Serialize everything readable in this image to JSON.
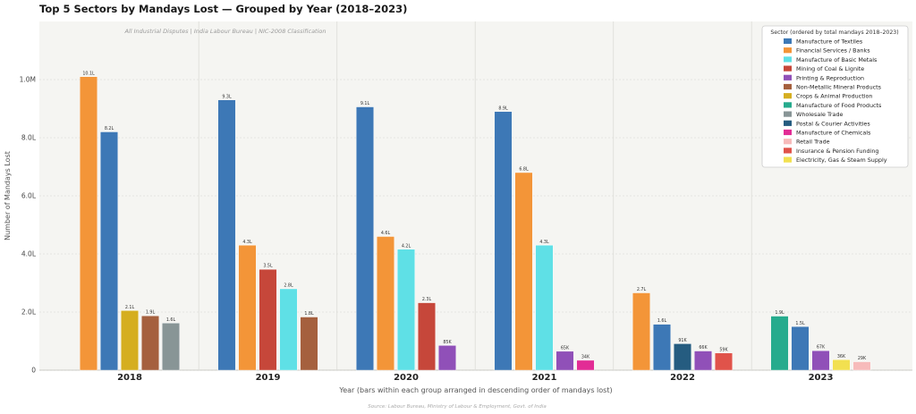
{
  "chart_data": {
    "type": "bar",
    "title": "Top 5 Sectors by Mandays Lost — Grouped by Year (2018–2023)",
    "subtitle": "All Industrial Disputes  |  India Labour Bureau  |  NIC-2008 Classification",
    "ylabel": "Number of Mandays Lost",
    "xlabel": "Year  (bars within each group arranged in descending order of mandays lost)",
    "source": "Source: Labour Bureau, Ministry of Labour & Employment, Govt. of India",
    "ylim": [
      0,
      1200000
    ],
    "yticks": [
      0,
      200000,
      400000,
      600000,
      800000,
      1000000
    ],
    "ytick_labels": [
      "0",
      "2.0L",
      "4.0L",
      "6.0L",
      "8.0L",
      "1.0M"
    ],
    "grid": true,
    "legend_position": "top-right",
    "legend_title": "Sector  (ordered by total mandays 2018–2023)",
    "sectors": [
      {
        "name": "Manufacture of Textiles",
        "color": "#3d78b6"
      },
      {
        "name": "Financial Services / Banks",
        "color": "#f39538"
      },
      {
        "name": "Manufacture of Basic Metals",
        "color": "#5fe0e6"
      },
      {
        "name": "Mining of Coal & Lignite",
        "color": "#c6473a"
      },
      {
        "name": "Printing & Reproduction",
        "color": "#9050b8"
      },
      {
        "name": "Non-Metallic Mineral Products",
        "color": "#a5603e"
      },
      {
        "name": "Crops & Animal Production",
        "color": "#d5ae20"
      },
      {
        "name": "Manufacture of Food Products",
        "color": "#26ab8d"
      },
      {
        "name": "Wholesale Trade",
        "color": "#889596"
      },
      {
        "name": "Postal & Courier Activities",
        "color": "#255c80"
      },
      {
        "name": "Manufacture of Chemicals",
        "color": "#e22c95"
      },
      {
        "name": "Retail Trade",
        "color": "#f7bbbb"
      },
      {
        "name": "Insurance & Pension Funding",
        "color": "#e0534a"
      },
      {
        "name": "Electricity, Gas & Steam Supply",
        "color": "#f2e050"
      }
    ],
    "groups": [
      {
        "year": "2018",
        "bars": [
          {
            "sector": "Financial Services / Banks",
            "value": 1010000,
            "label": "10.1L"
          },
          {
            "sector": "Manufacture of Textiles",
            "value": 820000,
            "label": "8.2L"
          },
          {
            "sector": "Crops & Animal Production",
            "value": 205000,
            "label": "2.1L"
          },
          {
            "sector": "Non-Metallic Mineral Products",
            "value": 187000,
            "label": "1.9L"
          },
          {
            "sector": "Wholesale Trade",
            "value": 162000,
            "label": "1.6L"
          }
        ]
      },
      {
        "year": "2019",
        "bars": [
          {
            "sector": "Manufacture of Textiles",
            "value": 930000,
            "label": "9.3L"
          },
          {
            "sector": "Financial Services / Banks",
            "value": 430000,
            "label": "4.3L"
          },
          {
            "sector": "Mining of Coal & Lignite",
            "value": 347000,
            "label": "3.5L"
          },
          {
            "sector": "Manufacture of Basic Metals",
            "value": 280000,
            "label": "2.8L"
          },
          {
            "sector": "Non-Metallic Mineral Products",
            "value": 183000,
            "label": "1.8L"
          }
        ]
      },
      {
        "year": "2020",
        "bars": [
          {
            "sector": "Manufacture of Textiles",
            "value": 906000,
            "label": "9.1L"
          },
          {
            "sector": "Financial Services / Banks",
            "value": 460000,
            "label": "4.6L"
          },
          {
            "sector": "Manufacture of Basic Metals",
            "value": 416000,
            "label": "4.2L"
          },
          {
            "sector": "Mining of Coal & Lignite",
            "value": 232000,
            "label": "2.3L"
          },
          {
            "sector": "Printing & Reproduction",
            "value": 85000,
            "label": "85K"
          }
        ]
      },
      {
        "year": "2021",
        "bars": [
          {
            "sector": "Manufacture of Textiles",
            "value": 890000,
            "label": "8.9L"
          },
          {
            "sector": "Financial Services / Banks",
            "value": 680000,
            "label": "6.8L"
          },
          {
            "sector": "Manufacture of Basic Metals",
            "value": 430000,
            "label": "4.3L"
          },
          {
            "sector": "Printing & Reproduction",
            "value": 65000,
            "label": "65K"
          },
          {
            "sector": "Manufacture of Chemicals",
            "value": 34000,
            "label": "34K"
          }
        ]
      },
      {
        "year": "2022",
        "bars": [
          {
            "sector": "Financial Services / Banks",
            "value": 266000,
            "label": "2.7L"
          },
          {
            "sector": "Manufacture of Textiles",
            "value": 158000,
            "label": "1.6L"
          },
          {
            "sector": "Postal & Courier Activities",
            "value": 91000,
            "label": "91K"
          },
          {
            "sector": "Printing & Reproduction",
            "value": 66000,
            "label": "66K"
          },
          {
            "sector": "Insurance & Pension Funding",
            "value": 59000,
            "label": "59K"
          }
        ]
      },
      {
        "year": "2023",
        "bars": [
          {
            "sector": "Manufacture of Food Products",
            "value": 186000,
            "label": "1.9L"
          },
          {
            "sector": "Manufacture of Textiles",
            "value": 150000,
            "label": "1.5L"
          },
          {
            "sector": "Printing & Reproduction",
            "value": 67000,
            "label": "67K"
          },
          {
            "sector": "Electricity, Gas & Steam Supply",
            "value": 36000,
            "label": "36K"
          },
          {
            "sector": "Retail Trade",
            "value": 29000,
            "label": "29K"
          }
        ]
      }
    ]
  }
}
